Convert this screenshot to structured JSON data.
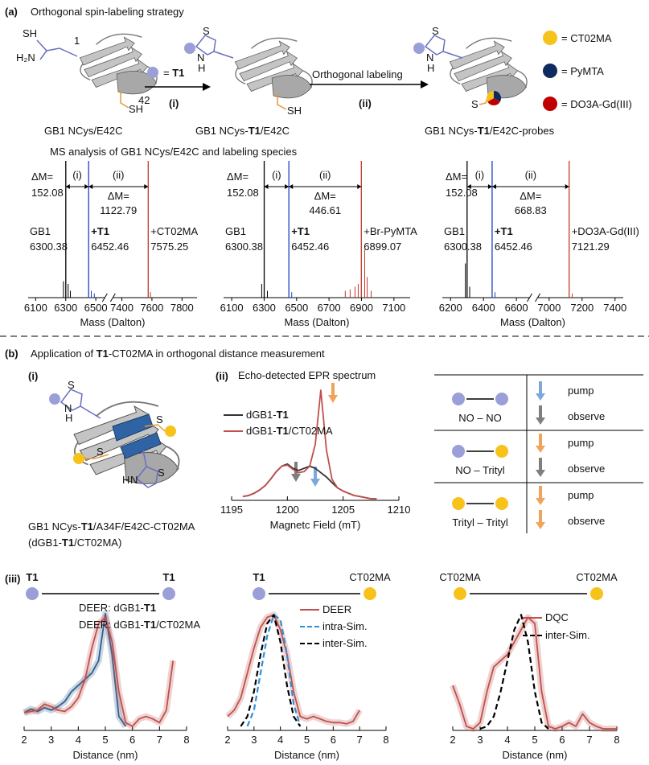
{
  "panel_a": {
    "label": "(a)",
    "title": "Orthogonal spin-labeling strategy",
    "struct_sh": "SH",
    "struct_h2n": "H₂N",
    "residue_1": "1",
    "residue_42": "42",
    "thiol": "SH",
    "ring_s": "S",
    "ring_n": "N",
    "ring_h": "H",
    "thioether_s": "S",
    "reagent": [
      "= ",
      "T1"
    ],
    "step_i": "(i)",
    "step_ii": "(ii)",
    "orthogonal": "Orthogonal labeling",
    "probes": [
      {
        "label": "= CT02MA",
        "color": "#f7c21a"
      },
      {
        "label": "= PyMTA",
        "color": "#0f2a5e"
      },
      {
        "label": "= DO3A-Gd(III)",
        "color": "#c00000"
      }
    ],
    "captions": [
      [
        "GB1 NCys/E42C"
      ],
      [
        "GB1 NCys-",
        "T1",
        "/E42C"
      ],
      [
        "GB1 NCys-",
        "T1",
        "/E42C-probes"
      ]
    ],
    "ms_title": "MS analysis of GB1 NCys/E42C and labeling species"
  },
  "panel_b": {
    "label": "(b)",
    "title": [
      "Application of ",
      "T1",
      "-CT02MA in orthogonal distance measurement"
    ],
    "sub_i": "(i)",
    "protein_caption": [
      "GB1 NCys-",
      "T1",
      "/A34F/E42C-CT02MA"
    ],
    "protein_caption2": [
      "(dGB1-",
      "T1",
      "/CT02MA)"
    ],
    "sub_ii": "(ii)",
    "epr_title": "Echo-detected EPR spectrum",
    "sub_iii": "(iii)",
    "table": [
      {
        "pair": "NO – NO",
        "left_color": "#9b9fd8",
        "right_color": "#9b9fd8",
        "pump": "pump",
        "pump_color": "#7fa7da",
        "observe": "observe",
        "observe_color": "#7f7f7f"
      },
      {
        "pair": "NO – Trityl",
        "left_color": "#9b9fd8",
        "right_color": "#f7c21a",
        "pump": "pump",
        "pump_color": "#f0a45a",
        "observe": "observe",
        "observe_color": "#7f7f7f"
      },
      {
        "pair": "Trityl – Trityl",
        "left_color": "#f7c21a",
        "right_color": "#f7c21a",
        "pump": "pump",
        "pump_color": "#f0a45a",
        "observe": "observe",
        "observe_color": "#f0a45a"
      }
    ],
    "distance_tags": [
      [
        {
          "label": "T1",
          "color": "#9b9fd8"
        },
        {
          "label": "T1",
          "color": "#9b9fd8"
        }
      ],
      [
        {
          "label": "T1",
          "color": "#9b9fd8"
        },
        {
          "label": "CT02MA",
          "color": "#f7c21a"
        }
      ],
      [
        {
          "label": "CT02MA",
          "color": "#f7c21a"
        },
        {
          "label": "CT02MA",
          "color": "#f7c21a"
        }
      ]
    ]
  },
  "chart_data": [
    {
      "type": "ms",
      "xlim": [
        6050,
        7900
      ],
      "xbreak": [
        6560,
        7340
      ],
      "xticks": [
        6100,
        6300,
        6500,
        7400,
        7600,
        7800
      ],
      "ylim": [
        0,
        1
      ],
      "xlabel": "Mass (Dalton)",
      "delta_label": "ΔM=",
      "deltas": [
        152.08,
        1122.79
      ],
      "steps": [
        "(i)",
        "(ii)"
      ],
      "peak_names": [
        "GB1",
        "+T1",
        "+CT02MA"
      ],
      "peaks": [
        {
          "x": 6300.38,
          "height": 1,
          "color": "#000000"
        },
        {
          "x": 6452.46,
          "height": 1,
          "color": "#1f3fbf"
        },
        {
          "x": 7575.25,
          "height": 1,
          "color": "#c0392b"
        },
        {
          "x": 6285,
          "height": 0.12,
          "color": "#000000"
        },
        {
          "x": 6316,
          "height": 0.1,
          "color": "#000000"
        },
        {
          "x": 6331,
          "height": 0.05,
          "color": "#000000"
        },
        {
          "x": 6470,
          "height": 0.05,
          "color": "#1f3fbf"
        },
        {
          "x": 6490,
          "height": 0.03,
          "color": "#1f3fbf"
        },
        {
          "x": 7590,
          "height": 0.04,
          "color": "#c0392b"
        }
      ]
    },
    {
      "type": "ms",
      "xlim": [
        6050,
        7200
      ],
      "xticks": [
        6100,
        6300,
        6500,
        6700,
        6900,
        7100
      ],
      "ylim": [
        0,
        1
      ],
      "xlabel": "Mass (Dalton)",
      "delta_label": "ΔM=",
      "deltas": [
        152.08,
        446.61
      ],
      "steps": [
        "(i)",
        "(ii)"
      ],
      "peak_names": [
        "GB1",
        "+T1",
        "+Br-PyMTA"
      ],
      "peaks": [
        {
          "x": 6300.38,
          "height": 1,
          "color": "#000000"
        },
        {
          "x": 6452.46,
          "height": 1,
          "color": "#1f3fbf"
        },
        {
          "x": 6899.07,
          "height": 1,
          "color": "#c0392b"
        },
        {
          "x": 6285,
          "height": 0.1,
          "color": "#000000"
        },
        {
          "x": 6320,
          "height": 0.05,
          "color": "#000000"
        },
        {
          "x": 6470,
          "height": 0.04,
          "color": "#1f3fbf"
        },
        {
          "x": 6800,
          "height": 0.05,
          "color": "#c0392b"
        },
        {
          "x": 6830,
          "height": 0.06,
          "color": "#c0392b"
        },
        {
          "x": 6860,
          "height": 0.08,
          "color": "#c0392b"
        },
        {
          "x": 6880,
          "height": 0.1,
          "color": "#c0392b"
        },
        {
          "x": 6920,
          "height": 0.35,
          "color": "#c0392b"
        },
        {
          "x": 6935,
          "height": 0.15,
          "color": "#c0392b"
        },
        {
          "x": 6960,
          "height": 0.05,
          "color": "#c0392b"
        }
      ]
    },
    {
      "type": "ms",
      "xlim": [
        6150,
        7450
      ],
      "xbreak": [
        6680,
        6930
      ],
      "xticks": [
        6200,
        6400,
        6600,
        7000,
        7200,
        7400
      ],
      "ylim": [
        0,
        1
      ],
      "xlabel": "Mass (Dalton)",
      "delta_label": "ΔM=",
      "deltas": [
        152.08,
        668.83
      ],
      "steps": [
        "(i)",
        "(ii)"
      ],
      "peak_names": [
        "GB1",
        "+T1",
        "+DO3A-Gd(III)"
      ],
      "peaks": [
        {
          "x": 6300.38,
          "height": 1,
          "color": "#000000"
        },
        {
          "x": 6452.46,
          "height": 1,
          "color": "#1f3fbf"
        },
        {
          "x": 7121.29,
          "height": 1,
          "color": "#c0392b"
        },
        {
          "x": 6290,
          "height": 0.25,
          "color": "#000000"
        },
        {
          "x": 6316,
          "height": 0.08,
          "color": "#000000"
        },
        {
          "x": 6470,
          "height": 0.04,
          "color": "#1f3fbf"
        },
        {
          "x": 7140,
          "height": 0.03,
          "color": "#c0392b"
        }
      ]
    },
    {
      "type": "line",
      "xlim": [
        1195,
        1210
      ],
      "xticks": [
        1195,
        1200,
        1205,
        1210
      ],
      "ylim": [
        0,
        1
      ],
      "xlabel": "Magnetc Field (mT)",
      "x": [
        1196,
        1196.5,
        1197,
        1197.5,
        1198,
        1198.5,
        1199,
        1199.5,
        1200,
        1200.5,
        1201,
        1201.5,
        1202,
        1202.5,
        1203,
        1203.5,
        1204,
        1204.5,
        1205,
        1205.5,
        1206,
        1206.5,
        1207,
        1207.5,
        1208
      ],
      "series": [
        {
          "name": [
            "dGB1-",
            "T1"
          ],
          "color": "#333333",
          "values": [
            0.02,
            0.03,
            0.05,
            0.08,
            0.12,
            0.18,
            0.25,
            0.3,
            0.32,
            0.28,
            0.26,
            0.28,
            0.3,
            0.28,
            0.24,
            0.2,
            0.15,
            0.1,
            0.07,
            0.05,
            0.03,
            0.02,
            0.01,
            0,
            0
          ]
        },
        {
          "name": [
            "dGB1-",
            "T1",
            "/CT02MA"
          ],
          "color": "#c0504d",
          "values": [
            0.02,
            0.03,
            0.05,
            0.08,
            0.12,
            0.18,
            0.25,
            0.3,
            0.31,
            0.27,
            0.24,
            0.25,
            0.3,
            0.5,
            1.0,
            0.45,
            0.18,
            0.1,
            0.07,
            0.05,
            0.03,
            0.02,
            0.01,
            0,
            0
          ]
        }
      ]
    },
    {
      "type": "line",
      "xlim": [
        2,
        8
      ],
      "xticks": [
        2,
        3,
        4,
        5,
        6,
        7,
        8
      ],
      "ylim": [
        0,
        1
      ],
      "xlabel": "Distance (nm)",
      "x": [
        2,
        2.25,
        2.5,
        2.75,
        3,
        3.25,
        3.5,
        3.75,
        4,
        4.25,
        4.5,
        4.75,
        5,
        5.25,
        5.5,
        5.75,
        6,
        6.25,
        6.5,
        6.75,
        7,
        7.25,
        7.5,
        7.75,
        8
      ],
      "series": [
        {
          "name": [
            "DEER: dGB1-",
            "T1"
          ],
          "color": "#2e5f8f",
          "band": true,
          "values": [
            0.13,
            0.16,
            0.14,
            0.17,
            0.15,
            0.18,
            0.22,
            0.3,
            0.35,
            0.4,
            0.45,
            0.55,
            0.93,
            0.6,
            0.1,
            0.02,
            null,
            null,
            null,
            null,
            null,
            null,
            null,
            null,
            null
          ]
        },
        {
          "name": [
            "DEER: dGB1-",
            "T1",
            "/CT02MA"
          ],
          "color": "#c0504d",
          "band": true,
          "values": [
            0.13,
            0.14,
            0.15,
            0.2,
            0.18,
            0.15,
            0.14,
            0.18,
            0.25,
            0.4,
            0.65,
            0.85,
            0.9,
            0.7,
            0.3,
            0.05,
            0.02,
            0.08,
            0.1,
            0.08,
            0.05,
            0.15,
            0.55,
            null,
            null
          ]
        }
      ]
    },
    {
      "type": "line",
      "xlim": [
        2,
        8
      ],
      "xticks": [
        2,
        3,
        4,
        5,
        6,
        7,
        8
      ],
      "ylim": [
        0,
        1
      ],
      "xlabel": "Distance (nm)",
      "x": [
        2,
        2.25,
        2.5,
        2.75,
        3,
        3.25,
        3.5,
        3.75,
        4,
        4.25,
        4.5,
        4.75,
        5,
        5.25,
        5.5,
        5.75,
        6,
        6.25,
        6.5,
        6.75,
        7,
        7.25,
        7.5,
        7.75,
        8
      ],
      "series": [
        {
          "name": "DEER",
          "color": "#c0504d",
          "band": true,
          "values": [
            0.1,
            0.15,
            0.25,
            0.45,
            0.65,
            0.82,
            0.9,
            0.92,
            0.8,
            0.6,
            0.3,
            0.1,
            0.08,
            0.1,
            0.08,
            0.06,
            0.05,
            0.05,
            0.04,
            0.06,
            0.15,
            null,
            null,
            null,
            null
          ]
        },
        {
          "name": "intra-Sim.",
          "color": "#2f8fd6",
          "dash": true,
          "values": [
            null,
            null,
            null,
            0.02,
            0.15,
            0.45,
            0.75,
            0.92,
            0.88,
            0.6,
            0.2,
            0.02,
            null,
            null,
            null,
            null,
            null,
            null,
            null,
            null,
            null,
            null,
            null,
            null,
            null
          ]
        },
        {
          "name": "inter-Sim.",
          "color": "#000000",
          "dash": true,
          "values": [
            null,
            null,
            0.02,
            0.1,
            0.3,
            0.6,
            0.85,
            0.92,
            0.7,
            0.35,
            0.1,
            0.02,
            null,
            null,
            null,
            null,
            null,
            null,
            null,
            null,
            null,
            null,
            null,
            null,
            null
          ]
        }
      ]
    },
    {
      "type": "line",
      "xlim": [
        2,
        8
      ],
      "xticks": [
        2,
        3,
        4,
        5,
        6,
        7,
        8
      ],
      "ylim": [
        0,
        1
      ],
      "xlabel": "Distance (nm)",
      "x": [
        2,
        2.25,
        2.5,
        2.75,
        3,
        3.25,
        3.5,
        3.75,
        4,
        4.25,
        4.5,
        4.75,
        5,
        5.25,
        5.5,
        5.75,
        6,
        6.25,
        6.5,
        6.75,
        7,
        7.25,
        7.5,
        7.75,
        8
      ],
      "series": [
        {
          "name": "DQC",
          "color": "#c0504d",
          "band": true,
          "values": [
            0.35,
            0.2,
            0.02,
            0,
            0.05,
            0.3,
            0.5,
            0.55,
            0.6,
            0.7,
            0.8,
            0.9,
            0.85,
            0.3,
            0.02,
            0,
            0.02,
            0.05,
            0.02,
            0.12,
            0.05,
            0.02,
            0,
            0,
            0
          ]
        },
        {
          "name": "inter-Sim.",
          "color": "#000000",
          "dash": true,
          "values": [
            null,
            null,
            null,
            null,
            0,
            0.02,
            0.1,
            0.3,
            0.55,
            0.8,
            0.92,
            0.7,
            0.3,
            0.05,
            0,
            null,
            null,
            null,
            null,
            null,
            null,
            null,
            null,
            null,
            null
          ]
        }
      ]
    }
  ]
}
